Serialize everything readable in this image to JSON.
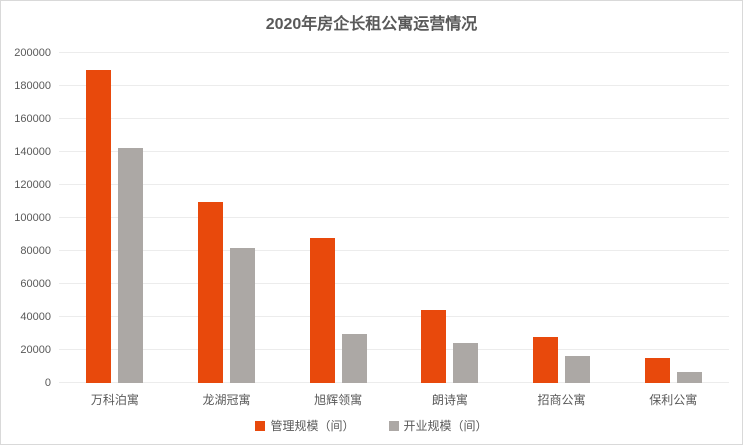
{
  "title": "2020年房企长租公寓运营情况",
  "colors": {
    "series_management": "#E8490C",
    "series_opened": "#ACA8A5",
    "gridline": "#ECECEC",
    "title_text": "#595959",
    "axis_text": "#595959",
    "border": "#D9D9D9"
  },
  "chart_data": {
    "type": "bar",
    "title": "2020年房企长租公寓运营情况",
    "categories": [
      "万科泊寓",
      "龙湖冠寓",
      "旭辉领寓",
      "朗诗寓",
      "招商公寓",
      "保利公寓"
    ],
    "series": [
      {
        "name": "管理规模（间）",
        "color": "#E8490C",
        "values": [
          190000,
          110000,
          88000,
          44000,
          28000,
          15000
        ]
      },
      {
        "name": "开业规模（间）",
        "color": "#ACA8A5",
        "values": [
          142400,
          82000,
          30000,
          24000,
          16500,
          6500
        ]
      }
    ],
    "xlabel": "",
    "ylabel": "",
    "ylim": [
      0,
      200000
    ],
    "yticks": [
      0,
      20000,
      40000,
      60000,
      80000,
      100000,
      120000,
      140000,
      160000,
      180000,
      200000
    ],
    "grid": true,
    "legend_position": "bottom"
  }
}
